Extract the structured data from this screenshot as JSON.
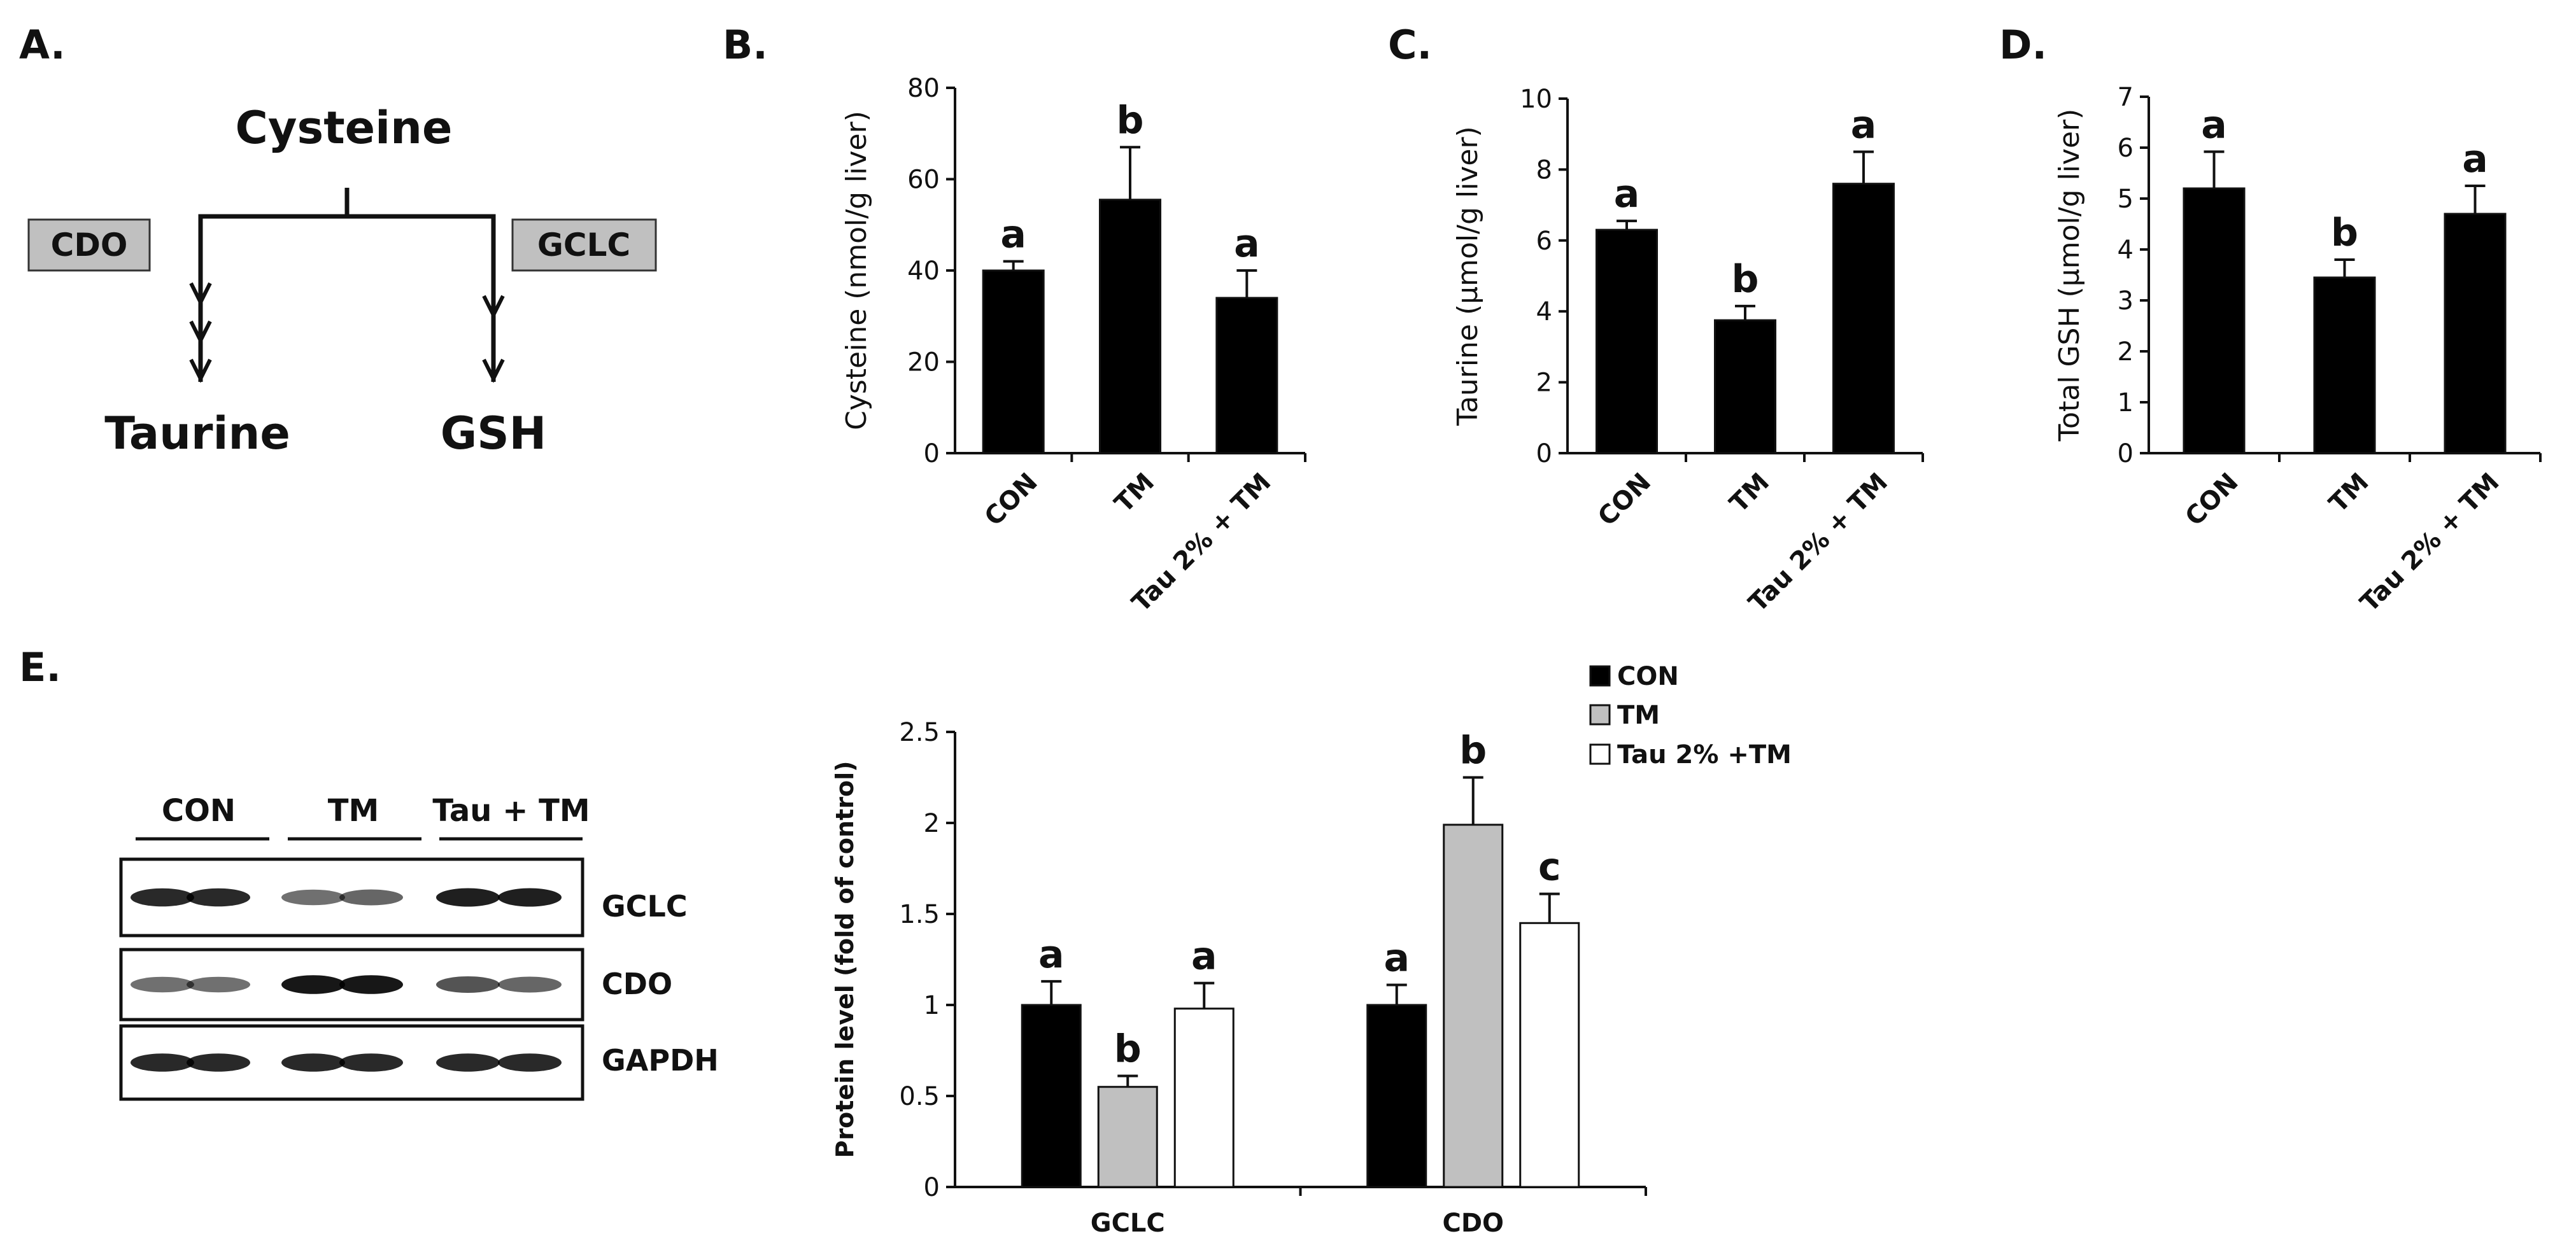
{
  "panels": {
    "a": "A.",
    "b": "B.",
    "c": "C.",
    "d": "D.",
    "e": "E."
  },
  "diagram": {
    "top": "Cysteine",
    "left_enzyme": "CDO",
    "right_enzyme": "GCLC",
    "left_product": "Taurine",
    "right_product": "GSH"
  },
  "blot": {
    "groups": [
      "CON",
      "TM",
      "Tau  +  TM"
    ],
    "proteins": [
      "GCLC",
      "CDO",
      "GAPDH"
    ]
  },
  "chart_data": [
    {
      "id": "B",
      "type": "bar",
      "categories": [
        "CON",
        "TM",
        "Tau 2% + TM"
      ],
      "values": [
        40,
        55.5,
        34
      ],
      "errors": [
        2,
        11.5,
        6
      ],
      "letters": [
        "a",
        "b",
        "a"
      ],
      "ylabel": "Cysteine  (nmol/g liver)",
      "ylim": [
        0,
        80
      ],
      "yticks": [
        0,
        20,
        40,
        60,
        80
      ],
      "color": "#000000"
    },
    {
      "id": "C",
      "type": "bar",
      "categories": [
        "CON",
        "TM",
        "Tau 2% + TM"
      ],
      "values": [
        6.3,
        3.75,
        7.6
      ],
      "errors": [
        0.25,
        0.4,
        0.9
      ],
      "letters": [
        "a",
        "b",
        "a"
      ],
      "ylabel": "Taurine  (μmol/g liver)",
      "ylim": [
        0,
        10
      ],
      "yticks": [
        0,
        2,
        4,
        6,
        8,
        10
      ],
      "color": "#000000"
    },
    {
      "id": "D",
      "type": "bar",
      "categories": [
        "CON",
        "TM",
        "Tau 2% + TM"
      ],
      "values": [
        5.2,
        3.45,
        4.7
      ],
      "errors": [
        0.72,
        0.35,
        0.55
      ],
      "letters": [
        "a",
        "b",
        "a"
      ],
      "ylabel": "Total  GSH  (μmol/g liver)",
      "ylim": [
        0,
        7
      ],
      "yticks": [
        0,
        1,
        2,
        3,
        4,
        5,
        6,
        7
      ],
      "color": "#000000"
    },
    {
      "id": "E",
      "type": "bar",
      "categories": [
        "GCLC",
        "CDO"
      ],
      "series": [
        {
          "name": "CON",
          "values": [
            1.0,
            1.0
          ],
          "errors": [
            0.13,
            0.11
          ],
          "letters": [
            "a",
            "a"
          ],
          "color": "#000000"
        },
        {
          "name": "TM",
          "values": [
            0.55,
            1.99
          ],
          "errors": [
            0.06,
            0.26
          ],
          "letters": [
            "b",
            "b"
          ],
          "color": "#c0c0c0"
        },
        {
          "name": "Tau 2% +TM",
          "values": [
            0.98,
            1.45
          ],
          "errors": [
            0.14,
            0.16
          ],
          "letters": [
            "a",
            "c"
          ],
          "color": "#ffffff"
        }
      ],
      "ylabel": "Protein level  (fold of control)",
      "ylim": [
        0,
        2.5
      ],
      "yticks": [
        0,
        0.5,
        1,
        1.5,
        2,
        2.5
      ],
      "ytick_labels": [
        "0",
        "0.5",
        "1",
        "1.5",
        "2",
        "2.5"
      ]
    }
  ]
}
